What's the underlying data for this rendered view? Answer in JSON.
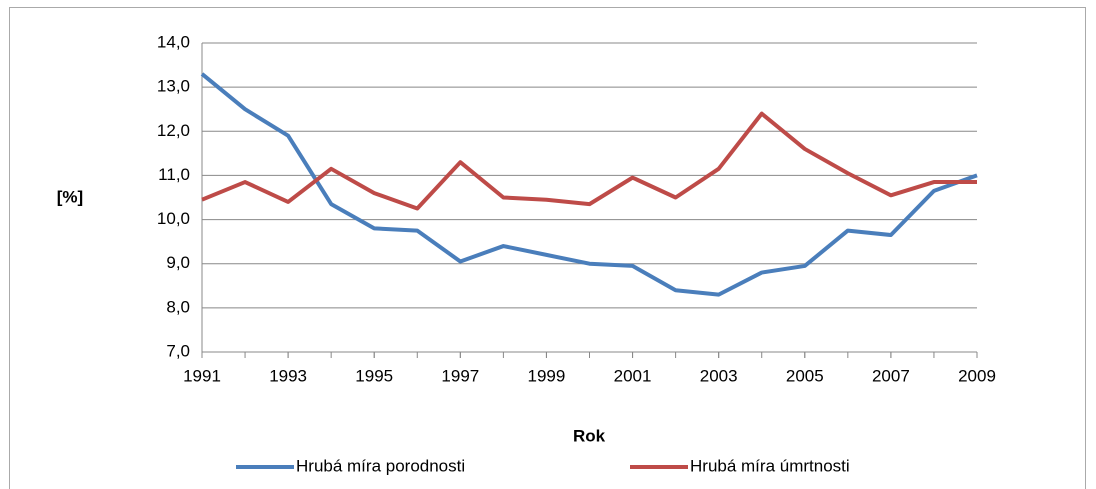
{
  "chart_data": {
    "type": "line",
    "x": [
      1991,
      1992,
      1993,
      1994,
      1995,
      1996,
      1997,
      1998,
      1999,
      2000,
      2001,
      2002,
      2003,
      2004,
      2005,
      2006,
      2007,
      2008,
      2009
    ],
    "series": [
      {
        "name": "Hrubá míra porodnosti",
        "color": "#4a7ebb",
        "values": [
          13.3,
          12.5,
          11.9,
          10.35,
          9.8,
          9.75,
          9.05,
          9.4,
          9.2,
          9.0,
          8.95,
          8.4,
          8.3,
          8.8,
          8.95,
          9.75,
          9.65,
          10.65,
          11.0
        ]
      },
      {
        "name": "Hrubá míra úmrtnosti",
        "color": "#be4b48",
        "values": [
          10.45,
          10.85,
          10.4,
          11.15,
          10.6,
          10.25,
          11.3,
          10.5,
          10.45,
          10.35,
          10.95,
          10.5,
          11.15,
          12.4,
          11.6,
          11.05,
          10.55,
          10.85,
          10.85
        ]
      }
    ],
    "xlim": [
      1991,
      2009
    ],
    "xticks": [
      1991,
      1993,
      1995,
      1997,
      1999,
      2001,
      2003,
      2005,
      2007,
      2009
    ],
    "ylim": [
      7,
      14
    ],
    "yticks": [
      {
        "value": 7,
        "label": "7,0"
      },
      {
        "value": 8,
        "label": "8,0"
      },
      {
        "value": 9,
        "label": "9,0"
      },
      {
        "value": 10,
        "label": "10,0"
      },
      {
        "value": 11,
        "label": "11,0"
      },
      {
        "value": 12,
        "label": "12,0"
      },
      {
        "value": 13,
        "label": "13,0"
      },
      {
        "value": 14,
        "label": "14,0"
      }
    ],
    "xlabel": "Rok",
    "ylabel": "[%]",
    "grid": true,
    "legend": "bottom"
  }
}
